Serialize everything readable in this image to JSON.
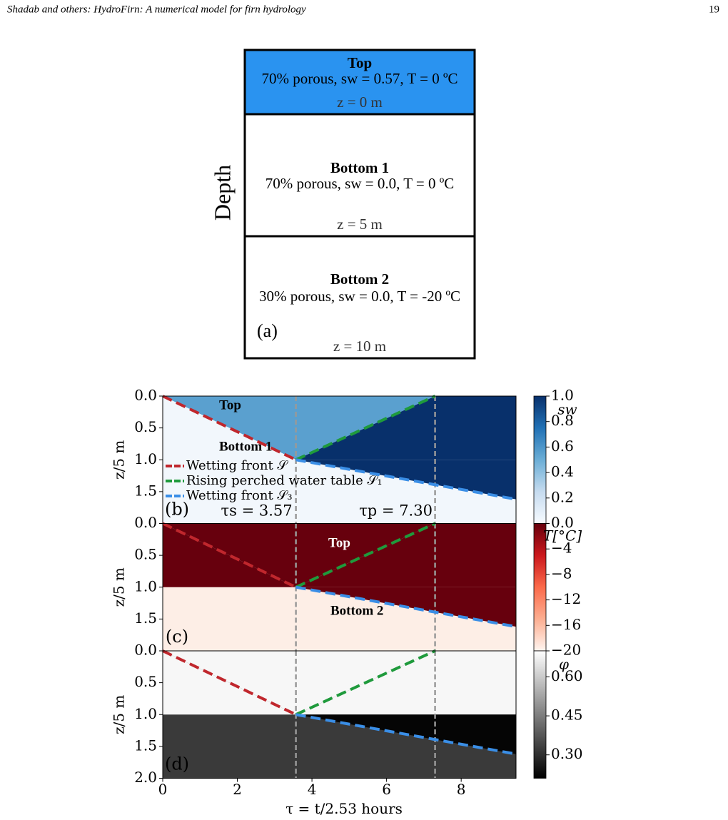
{
  "header": {
    "title": "Shadab and others: HydroFirn: A numerical model for firn hydrology",
    "page": "19"
  },
  "panel_a": {
    "label": "(a)",
    "axis_label": "Depth",
    "layers": [
      {
        "name": "Top",
        "description": "70% porous,  sw = 0.57,  T = 0 ºC",
        "depth": "z = 0 m",
        "color": "#2a93f0"
      },
      {
        "name": "Bottom 1",
        "description": "70% porous,  sw = 0.0,    T = 0 ºC",
        "depth": "z = 5 m",
        "color": "#ffffff"
      },
      {
        "name": "Bottom 2",
        "description": "30% porous,  sw = 0.0,    T = -20 ºC",
        "depth": "z = 10 m",
        "color": "#ffffff"
      }
    ]
  },
  "chart_data": [
    {
      "type": "region",
      "panel_label": "(b)",
      "ylabel": "z/5 m",
      "xlim": [
        0,
        9.47
      ],
      "ylim": [
        0,
        2
      ],
      "y_inverted": true,
      "yticks": [
        {
          "value": 0,
          "label": "0.0"
        },
        0.5,
        {
          "value": 1,
          "label": "1.0"
        },
        1.5
      ],
      "annotations": [
        "Top",
        "Bottom 1"
      ],
      "vlines": [
        3.57,
        7.3
      ],
      "vline_labels": [
        "τs = 3.57",
        "τp = 7.30"
      ],
      "background": "#f2f7fc",
      "zone_colors": [
        "#5aa0cf",
        "#08306b",
        "#f2f7fc",
        "#08306b"
      ],
      "series": [
        {
          "name": "Wetting front 𝒮",
          "color": "#c0272d",
          "x": [
            0,
            3.57
          ],
          "values": [
            0,
            1
          ]
        },
        {
          "name": "Rising perched water table 𝒮₁",
          "color": "#1f9a3c",
          "x": [
            3.57,
            7.3
          ],
          "values": [
            1,
            0
          ]
        },
        {
          "name": "Wetting front 𝒮₃",
          "color": "#3a8ee6",
          "x": [
            3.57,
            9.47
          ],
          "values": [
            1,
            1.62
          ]
        }
      ],
      "colorbar": {
        "label": "sw",
        "lim": [
          0,
          1
        ],
        "colors": [
          "#f7fbff",
          "#c6dbef",
          "#6baed6",
          "#2171b5",
          "#08306b"
        ],
        "ticks": [
          {
            "value": 0,
            "label": "0.0"
          },
          0.2,
          0.4,
          0.6,
          0.8,
          {
            "value": 1,
            "label": "1.0"
          }
        ]
      }
    },
    {
      "type": "region",
      "panel_label": "(c)",
      "ylabel": "z/5 m",
      "xlim": [
        0,
        9.47
      ],
      "ylim": [
        0,
        2
      ],
      "y_inverted": true,
      "yticks": [
        {
          "value": 0,
          "label": "0.0"
        },
        0.5,
        {
          "value": 1,
          "label": "1.0"
        },
        1.5
      ],
      "annotations": [
        "Top",
        "Bottom 2"
      ],
      "vlines": [
        3.57,
        7.3
      ],
      "background": "#fdeee6",
      "zone_colors": [
        "#67000d",
        "#67000d",
        "#67000d",
        "#67000d"
      ],
      "series": [
        {
          "color": "#c0272d",
          "x": [
            0,
            3.57
          ],
          "values": [
            0,
            1
          ]
        },
        {
          "color": "#1f9a3c",
          "x": [
            3.57,
            7.3
          ],
          "values": [
            1,
            0
          ]
        },
        {
          "color": "#3a8ee6",
          "x": [
            3.57,
            9.47
          ],
          "values": [
            1,
            1.62
          ]
        }
      ],
      "colorbar": {
        "label": "T[°C]",
        "lim": [
          -20,
          0
        ],
        "colors": [
          "#fff5f0",
          "#fcae91",
          "#fb6a4a",
          "#cb181d",
          "#67000d"
        ],
        "ticks": [
          {
            "value": -4,
            "label": "−4"
          },
          {
            "value": -8,
            "label": "−8"
          },
          {
            "value": -12,
            "label": "−12"
          },
          {
            "value": -16,
            "label": "−16"
          },
          {
            "value": -20,
            "label": "−20"
          }
        ]
      }
    },
    {
      "type": "region",
      "panel_label": "(d)",
      "ylabel": "z/5 m",
      "xlabel": "τ = t/2.53 hours",
      "xlim": [
        0,
        9.47
      ],
      "ylim": [
        0,
        2
      ],
      "y_inverted": true,
      "yticks": [
        {
          "value": 0,
          "label": "0.0"
        },
        0.5,
        {
          "value": 1,
          "label": "1.0"
        },
        1.5,
        {
          "value": 2,
          "label": "2.0"
        }
      ],
      "xticks": [
        0,
        2,
        4,
        6,
        8
      ],
      "vlines": [
        3.57,
        7.3
      ],
      "background": "#3a3a3a",
      "zone_colors": [
        "#f7f7f7",
        "#f7f7f7",
        "#f7f7f7",
        "#050505"
      ],
      "series": [
        {
          "color": "#c0272d",
          "x": [
            0,
            3.57
          ],
          "values": [
            0,
            1
          ]
        },
        {
          "color": "#1f9a3c",
          "x": [
            3.57,
            7.3
          ],
          "values": [
            1,
            0
          ]
        },
        {
          "color": "#3a8ee6",
          "x": [
            3.57,
            9.47
          ],
          "values": [
            1,
            1.62
          ]
        }
      ],
      "colorbar": {
        "label": "φ",
        "lim": [
          0.21,
          0.7
        ],
        "colors": [
          "#000000",
          "#555555",
          "#aaaaaa",
          "#ffffff"
        ],
        "ticks": [
          {
            "value": 0.6,
            "label": "0.60"
          },
          0.45,
          {
            "value": 0.3,
            "label": "0.30"
          }
        ]
      }
    }
  ]
}
